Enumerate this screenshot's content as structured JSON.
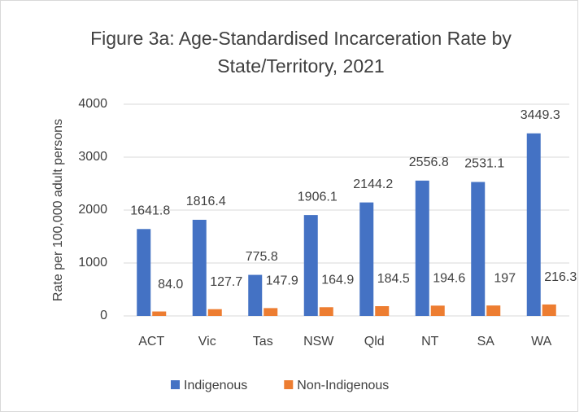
{
  "chart_data": {
    "type": "bar",
    "title": "Figure 3a: Age-Standardised Incarceration Rate by State/Territory, 2021",
    "y_label": "Rate per 100,000 adult persons",
    "categories": [
      "ACT",
      "Vic",
      "Tas",
      "NSW",
      "Qld",
      "NT",
      "SA",
      "WA"
    ],
    "series": [
      {
        "name": "Indigenous",
        "color": "#4472c4",
        "values": [
          1641.8,
          1816.4,
          775.8,
          1906.1,
          2144.2,
          2556.8,
          2531.1,
          3449.3
        ]
      },
      {
        "name": "Non-Indigenous",
        "color": "#ed7d31",
        "values": [
          84,
          127.7,
          147.9,
          164.9,
          184.5,
          194.6,
          197,
          216.3
        ],
        "value_labels": [
          "84.0",
          "127.7",
          "147.9",
          "164.9",
          "184.5",
          "194.6",
          "197",
          "216.3"
        ]
      }
    ],
    "ylim": [
      0,
      4000
    ],
    "yticks": [
      0,
      1000,
      2000,
      3000,
      4000
    ],
    "grid": true,
    "legend": "bottom"
  }
}
